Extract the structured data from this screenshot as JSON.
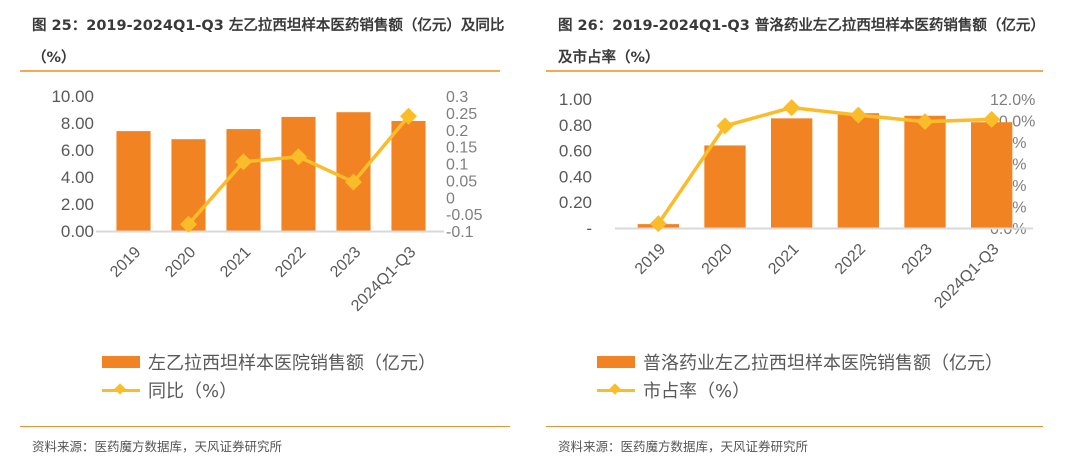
{
  "colors": {
    "bar": "#f28322",
    "line": "#fbbc2a",
    "axis": "#d9d9d9",
    "rule": "#f4a85a"
  },
  "chart_data": [
    {
      "type": "bar",
      "title": "图 25：2019-2024Q1-Q3 左乙拉西坦样本医药销售额（亿元）及同比（%）",
      "categories": [
        "2019",
        "2020",
        "2021",
        "2022",
        "2023",
        "2024Q1-Q3"
      ],
      "series": [
        {
          "name": "左乙拉西坦样本医院销售额（亿元）",
          "type": "bar",
          "axis": "left",
          "values": [
            7.4,
            6.8,
            7.55,
            8.45,
            8.8,
            8.15
          ]
        },
        {
          "name": "同比（%）",
          "type": "line",
          "axis": "right",
          "values": [
            null,
            -0.08,
            0.105,
            0.12,
            0.045,
            0.24
          ]
        }
      ],
      "ylim": [
        0,
        10
      ],
      "yticks": [
        "0.00",
        "2.00",
        "4.00",
        "6.00",
        "8.00",
        "10.00"
      ],
      "y2lim": [
        -0.1,
        0.3
      ],
      "y2ticks": [
        "-0.1",
        "-0.05",
        "0",
        "0.05",
        "0.1",
        "0.15",
        "0.2",
        "0.25",
        "0.3"
      ],
      "xlabel": "",
      "ylabel": "",
      "legend_position": "bottom",
      "grid": false,
      "source": "资料来源：医药魔方数据库，天风证券研究所"
    },
    {
      "type": "bar",
      "title": "图 26：2019-2024Q1-Q3 普洛药业左乙拉西坦样本医药销售额（亿元）及市占率（%）",
      "categories": [
        "2019",
        "2020",
        "2021",
        "2022",
        "2023",
        "2024Q1-Q3"
      ],
      "series": [
        {
          "name": "普洛药业左乙拉西坦样本医院销售额（亿元）",
          "type": "bar",
          "axis": "left",
          "values": [
            0.03,
            0.64,
            0.85,
            0.89,
            0.87,
            0.82
          ]
        },
        {
          "name": "市占率（%）",
          "type": "line",
          "axis": "right",
          "values": [
            0.4,
            9.5,
            11.2,
            10.5,
            9.9,
            10.1
          ]
        }
      ],
      "ylim": [
        0,
        1.0
      ],
      "yticks": [
        "-",
        "0.20",
        "0.40",
        "0.60",
        "0.80",
        "1.00"
      ],
      "y2lim": [
        0,
        12
      ],
      "y2ticks": [
        "0.0%",
        "2.0%",
        "4.0%",
        "6.0%",
        "8.0%",
        "10.0%",
        "12.0%"
      ],
      "xlabel": "",
      "ylabel": "",
      "legend_position": "bottom",
      "grid": false,
      "source": "资料来源：医药魔方数据库，天风证券研究所"
    }
  ]
}
